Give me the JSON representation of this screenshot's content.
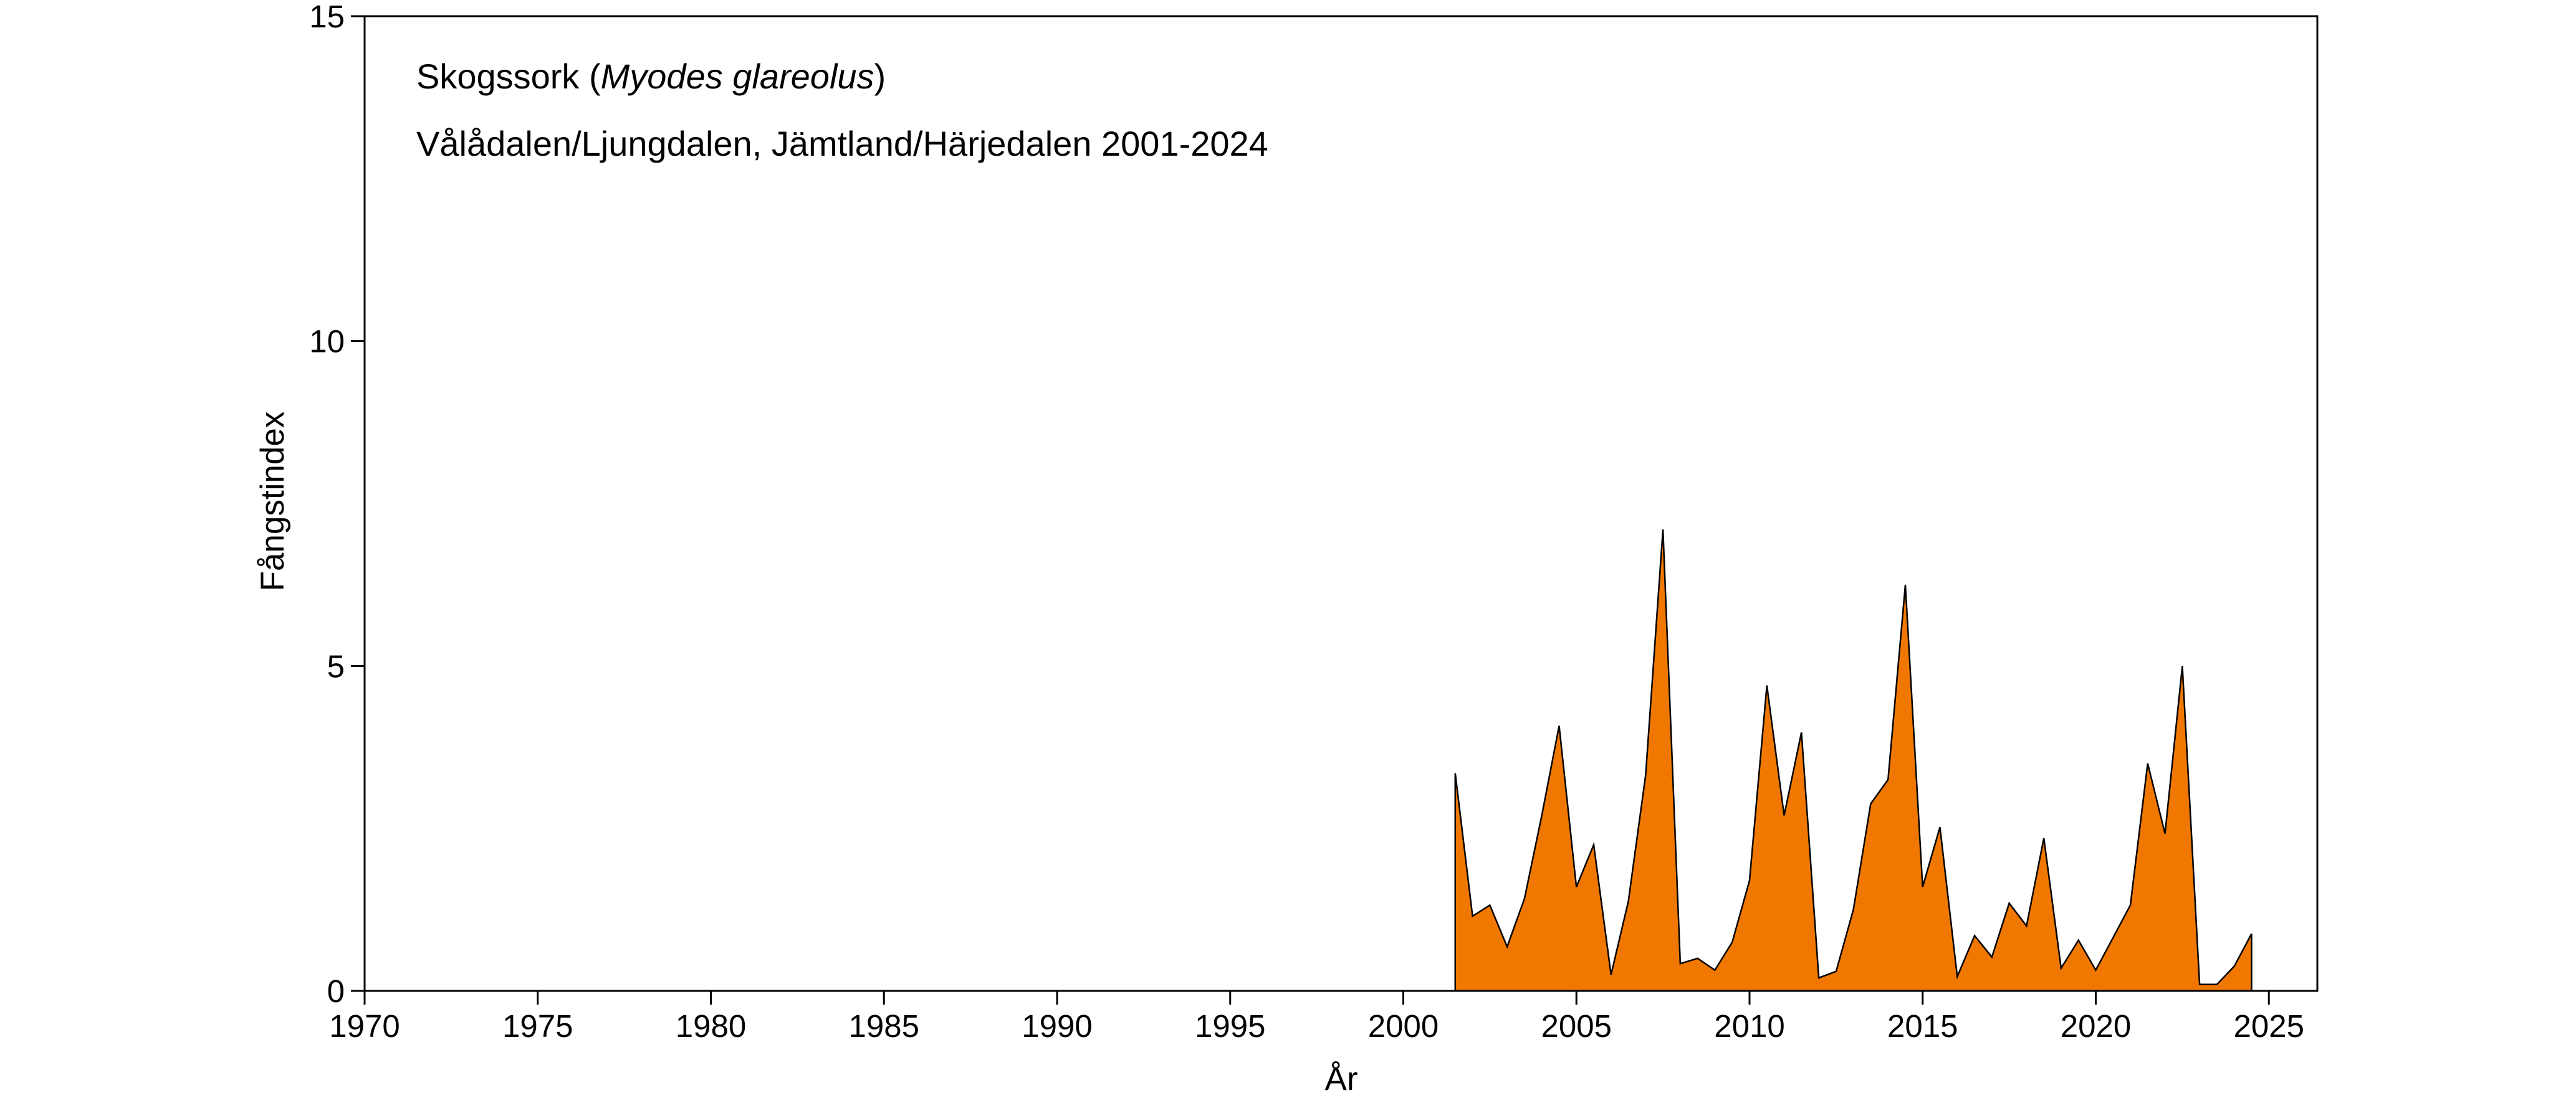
{
  "chart_data": {
    "type": "area",
    "title_prefix": "Skogssork (",
    "title_species": "Myodes glareolus",
    "title_suffix": ")",
    "subtitle": "Vålådalen/Ljungdalen, Jämtland/Härjedalen 2001-2024",
    "xlabel": "År",
    "ylabel": "Fångstindex",
    "xlim": [
      1970,
      2026.4
    ],
    "ylim": [
      0,
      15
    ],
    "xticks": [
      1970,
      1975,
      1980,
      1985,
      1990,
      1995,
      2000,
      2005,
      2010,
      2015,
      2020,
      2025
    ],
    "yticks": [
      0,
      5,
      10,
      15
    ],
    "grid": false,
    "fill_color": "#F07800",
    "line_color": "#000000",
    "x": [
      2001.5,
      2002.0,
      2002.5,
      2003.0,
      2003.5,
      2004.0,
      2004.5,
      2005.0,
      2005.5,
      2006.0,
      2006.5,
      2007.0,
      2007.5,
      2008.0,
      2008.5,
      2009.0,
      2009.5,
      2010.0,
      2010.5,
      2011.0,
      2011.5,
      2012.0,
      2012.5,
      2013.0,
      2013.5,
      2014.0,
      2014.5,
      2015.0,
      2015.5,
      2016.0,
      2016.5,
      2017.0,
      2017.5,
      2018.0,
      2018.5,
      2019.0,
      2019.5,
      2020.0,
      2020.5,
      2021.0,
      2021.5,
      2022.0,
      2022.5,
      2023.0,
      2023.5,
      2024.0,
      2024.5
    ],
    "y": [
      3.35,
      1.15,
      1.32,
      0.68,
      1.42,
      2.7,
      4.08,
      1.6,
      2.25,
      0.25,
      1.38,
      3.32,
      7.1,
      0.42,
      0.5,
      0.32,
      0.75,
      1.7,
      4.7,
      2.7,
      3.98,
      0.2,
      0.3,
      1.25,
      2.88,
      3.25,
      6.25,
      1.6,
      2.52,
      0.22,
      0.85,
      0.52,
      1.35,
      1.0,
      2.35,
      0.35,
      0.78,
      0.32,
      0.82,
      1.32,
      3.5,
      2.42,
      5.0,
      0.1,
      0.1,
      0.38,
      0.88
    ]
  }
}
